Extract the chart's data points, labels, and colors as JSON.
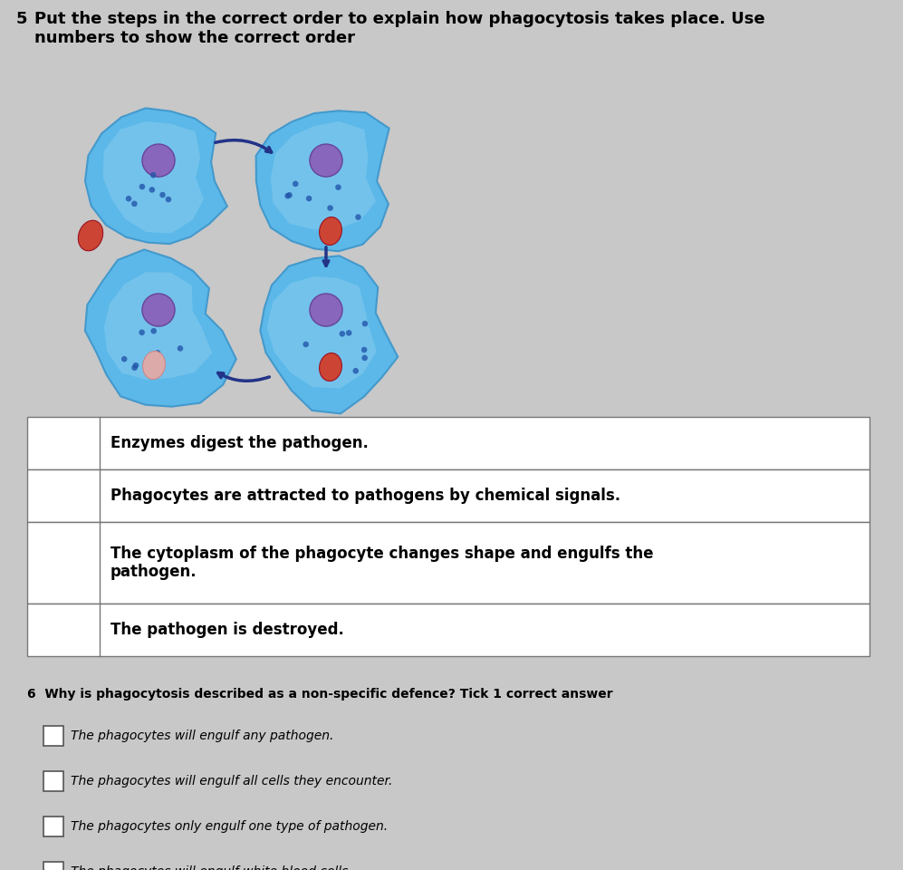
{
  "background_color": "#c8c8c8",
  "title_q5_num": "5",
  "title_q5_text": "Put the steps in the correct order to explain how phagocytosis takes place. Use\nnumbers to show the correct order",
  "table_rows": [
    "Enzymes digest the pathogen.",
    "Phagocytes are attracted to pathogens by chemical signals.",
    "The cytoplasm of the phagocyte changes shape and engulfs the\npathogen.",
    "The pathogen is destroyed."
  ],
  "q6_num": "6",
  "q6_text": "Why is phagocytosis described as a non-specific defence? Tick 1 correct answer",
  "q6_options": [
    "The phagocytes will engulf any pathogen.",
    "The phagocytes will engulf all cells they encounter.",
    "The phagocytes only engulf one type of pathogen.",
    "The phagocytes will engulf white blood cells."
  ],
  "cell_outer_color": "#5bb8e8",
  "cell_inner_color": "#88ccf0",
  "nucleus_color": "#8866bb",
  "dot_color": "#2255aa",
  "pathogen_color": "#cc4433",
  "arrow_color": "#223388",
  "title_fontsize": 13,
  "body_fontsize": 12,
  "small_fontsize": 10
}
